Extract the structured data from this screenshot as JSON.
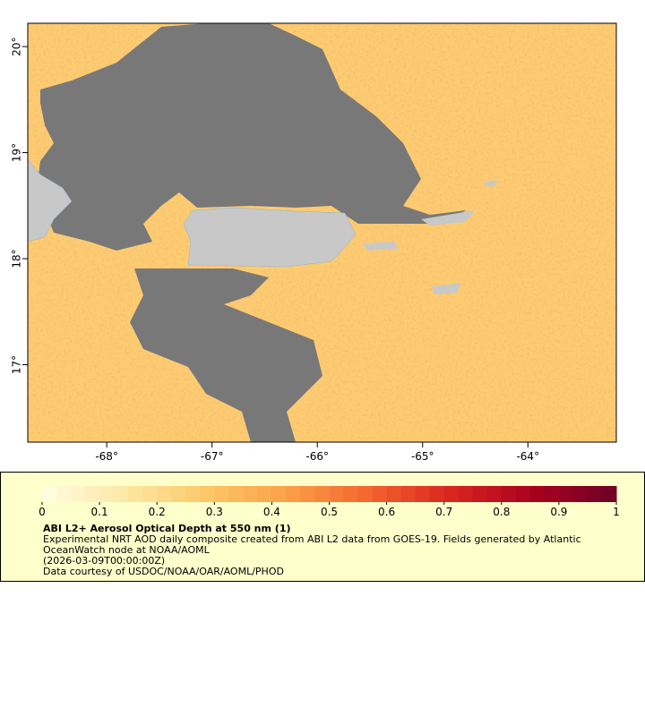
{
  "map": {
    "lon_range": [
      -68.75,
      -63.16
    ],
    "lat_range": [
      16.27,
      20.22
    ],
    "lon_ticks": [
      {
        "value": -68,
        "label": "-68°"
      },
      {
        "value": -67,
        "label": "-67°"
      },
      {
        "value": -66,
        "label": "-66°"
      },
      {
        "value": -65,
        "label": "-65°"
      },
      {
        "value": -64,
        "label": "-64°"
      }
    ],
    "lat_ticks": [
      {
        "value": 20,
        "label": "20°"
      },
      {
        "value": 19,
        "label": "19°"
      },
      {
        "value": 18,
        "label": "18°"
      },
      {
        "value": 17,
        "label": "17°"
      }
    ]
  },
  "legend": {
    "range": [
      0,
      1
    ],
    "ticks": [
      0,
      0.1,
      0.2,
      0.3,
      0.4,
      0.5,
      0.6,
      0.7,
      0.8,
      0.9,
      1
    ],
    "colormap": [
      "#fffde2",
      "#fde8a6",
      "#fcc868",
      "#fb9f47",
      "#f3642f",
      "#d9241f",
      "#a8001f",
      "#6e0027"
    ],
    "title": "ABI L2+ Aerosol Optical Depth at 550 nm (1)",
    "lines": [
      "Experimental NRT AOD daily composite created from ABI L2 data from GOES-19. Fields generated by Atlantic",
      "OceanWatch node at NOAA/AOML",
      "(2026-03-09T00:00:00Z)",
      "Data courtesy of USDOC/NOAA/OAR/AOML/PHOD"
    ]
  }
}
